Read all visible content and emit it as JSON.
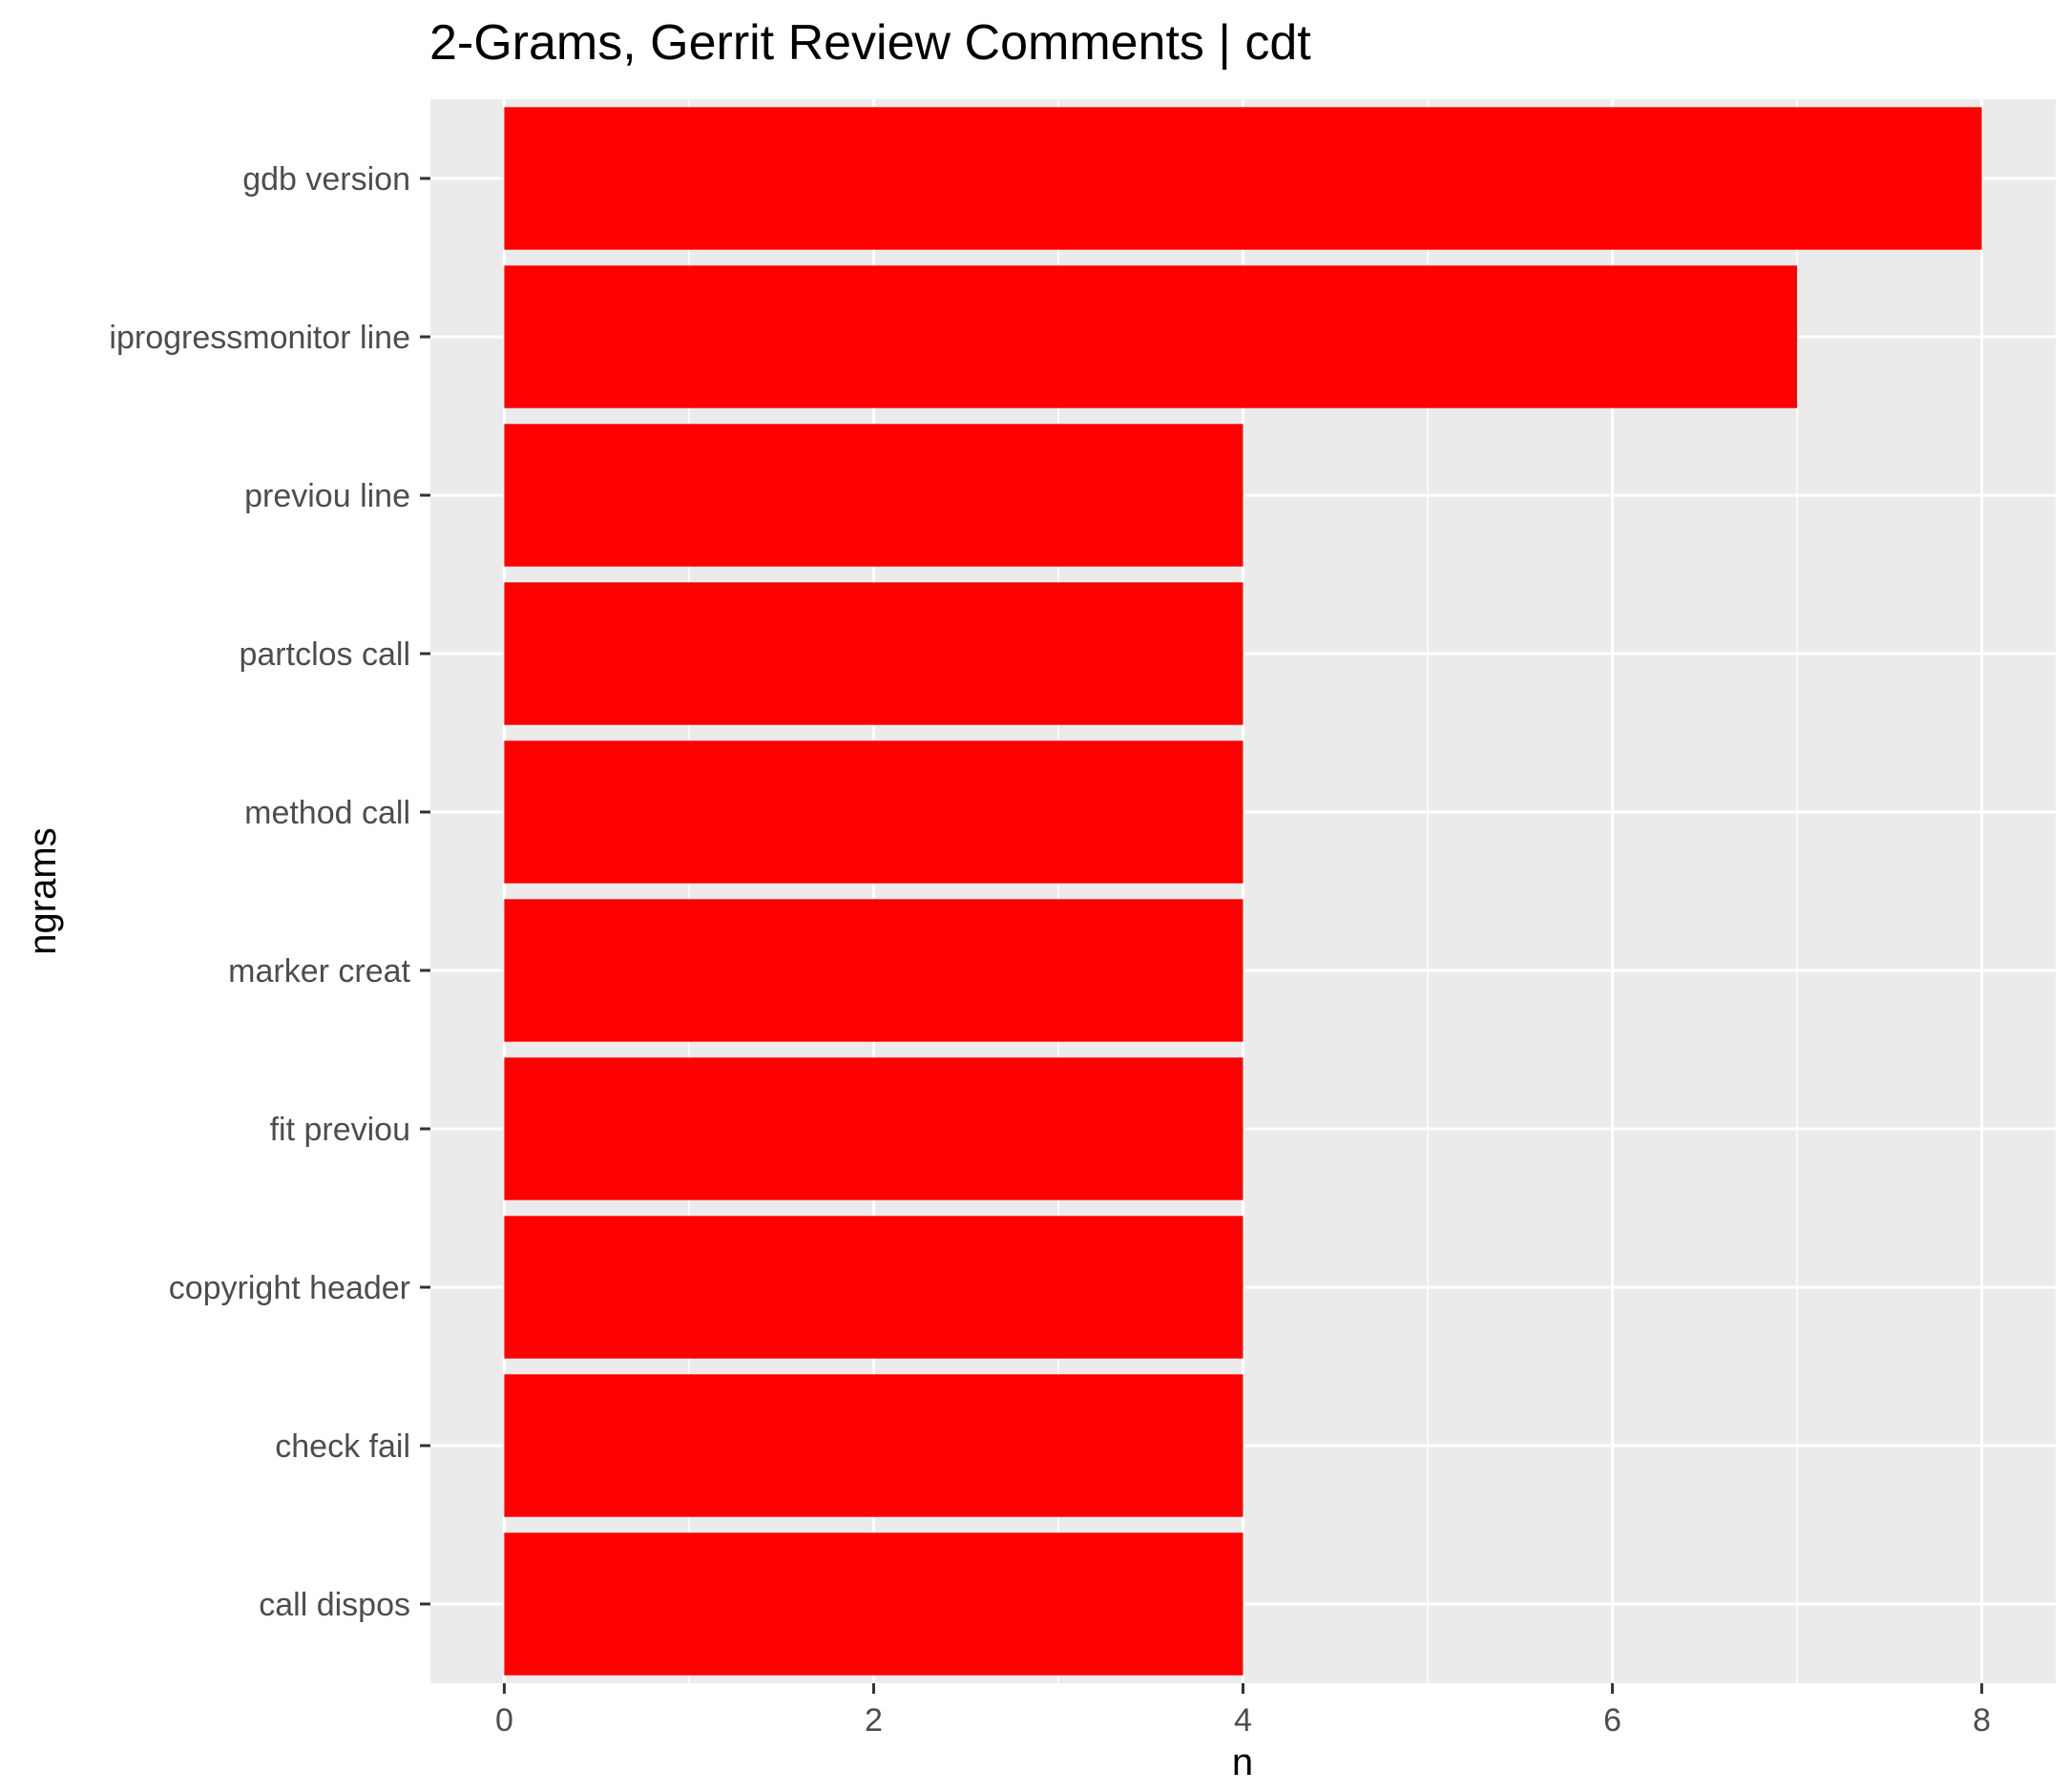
{
  "chart_data": {
    "type": "bar",
    "orientation": "horizontal",
    "title": "2-Grams, Gerrit Review Comments | cdt",
    "xlabel": "n",
    "ylabel": "ngrams",
    "categories": [
      "gdb version",
      "iprogressmonitor line",
      "previou line",
      "partclos call",
      "method call",
      "marker creat",
      "fit previou",
      "copyright header",
      "check fail",
      "call dispos"
    ],
    "values": [
      8,
      7,
      4,
      4,
      4,
      4,
      4,
      4,
      4,
      4
    ],
    "xlim": [
      -0.4,
      8.4
    ],
    "xticks": [
      0,
      2,
      4,
      6,
      8
    ],
    "grid": true,
    "bar_color": "#FF0000",
    "panel_color": "#EBEBEB",
    "gridline_color": "#FFFFFF"
  }
}
